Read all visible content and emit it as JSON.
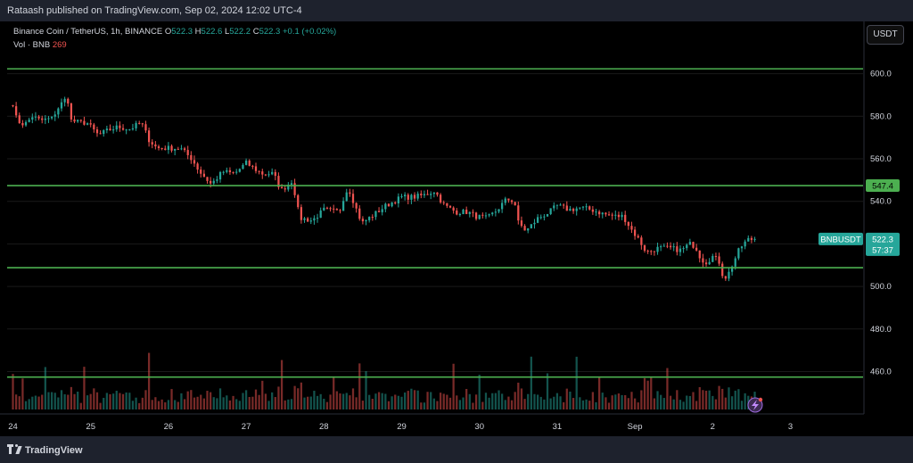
{
  "header": {
    "publisher_line": "Rataash published on TradingView.com, Sep 02, 2024 12:02 UTC-4"
  },
  "legend": {
    "title": "Binance Coin / TetherUS, 1h, BINANCE",
    "o_label": "O",
    "o_value": "522.3",
    "h_label": "H",
    "h_value": "522.6",
    "l_label": "L",
    "l_value": "522.2",
    "c_label": "C",
    "c_value": "522.3",
    "change": "+0.1 (+0.02%)",
    "vol_label": "Vol · BNB",
    "vol_value": "269"
  },
  "currency_button": "USDT",
  "footer": {
    "logo_text": "TradingView"
  },
  "colors": {
    "up": "#26a69a",
    "down": "#ef5350",
    "level_line": "#4caf50",
    "grid": "#1a1a1a"
  },
  "chart_data": {
    "type": "candlestick",
    "symbol": "BNBUSDT",
    "timeframe": "1h",
    "ylim": [
      443,
      612
    ],
    "y_ticks": [
      460,
      480,
      500,
      520,
      540,
      560,
      580,
      600
    ],
    "y_tick_labels": [
      "460.0",
      "480.0",
      "500.0",
      "520.0",
      "540.0",
      "560.0",
      "580.0",
      "600.0"
    ],
    "x_ticks": [
      {
        "label": "24",
        "day": 0
      },
      {
        "label": "25",
        "day": 1
      },
      {
        "label": "26",
        "day": 2
      },
      {
        "label": "27",
        "day": 3
      },
      {
        "label": "28",
        "day": 4
      },
      {
        "label": "29",
        "day": 5
      },
      {
        "label": "30",
        "day": 6
      },
      {
        "label": "31",
        "day": 7
      },
      {
        "label": "Sep",
        "day": 8
      },
      {
        "label": "2",
        "day": 9
      },
      {
        "label": "3",
        "day": 10
      }
    ],
    "horizontal_levels": [
      602.3,
      547.4,
      508.8,
      457.4
    ],
    "level_tag": {
      "label": "547.4",
      "price": 547.4
    },
    "last_price_tag": {
      "symbol": "BNBUSDT",
      "price": "522.3",
      "countdown": "57:37",
      "value": 522.3
    },
    "close_path": [
      [
        0.0,
        586
      ],
      [
        0.05,
        578
      ],
      [
        0.15,
        576
      ],
      [
        0.25,
        580
      ],
      [
        0.35,
        578
      ],
      [
        0.5,
        579
      ],
      [
        0.6,
        585
      ],
      [
        0.7,
        589
      ],
      [
        0.75,
        578
      ],
      [
        0.85,
        577
      ],
      [
        0.95,
        577
      ],
      [
        1.1,
        571
      ],
      [
        1.2,
        573
      ],
      [
        1.35,
        575
      ],
      [
        1.5,
        574
      ],
      [
        1.65,
        577
      ],
      [
        1.75,
        569
      ],
      [
        1.85,
        565
      ],
      [
        2.0,
        565
      ],
      [
        2.15,
        565
      ],
      [
        2.3,
        560
      ],
      [
        2.4,
        554
      ],
      [
        2.55,
        548
      ],
      [
        2.7,
        554
      ],
      [
        2.85,
        553
      ],
      [
        3.0,
        558
      ],
      [
        3.2,
        553
      ],
      [
        3.35,
        553
      ],
      [
        3.45,
        545
      ],
      [
        3.6,
        550
      ],
      [
        3.65,
        538
      ],
      [
        3.7,
        532
      ],
      [
        3.85,
        531
      ],
      [
        4.0,
        536
      ],
      [
        4.2,
        535
      ],
      [
        4.27,
        544
      ],
      [
        4.32,
        546
      ],
      [
        4.45,
        533
      ],
      [
        4.5,
        530
      ],
      [
        4.65,
        534
      ],
      [
        4.8,
        538
      ],
      [
        5.0,
        542
      ],
      [
        5.15,
        542
      ],
      [
        5.3,
        543
      ],
      [
        5.42,
        545
      ],
      [
        5.55,
        538
      ],
      [
        5.7,
        535
      ],
      [
        5.85,
        535
      ],
      [
        5.95,
        533
      ],
      [
        6.1,
        532
      ],
      [
        6.2,
        535
      ],
      [
        6.35,
        541
      ],
      [
        6.45,
        540
      ],
      [
        6.5,
        530
      ],
      [
        6.6,
        526
      ],
      [
        6.75,
        532
      ],
      [
        6.9,
        535
      ],
      [
        7.0,
        538
      ],
      [
        7.15,
        536
      ],
      [
        7.3,
        537
      ],
      [
        7.45,
        536
      ],
      [
        7.6,
        534
      ],
      [
        7.75,
        533
      ],
      [
        7.85,
        533
      ],
      [
        7.95,
        527
      ],
      [
        8.05,
        522
      ],
      [
        8.15,
        516
      ],
      [
        8.3,
        518
      ],
      [
        8.45,
        518
      ],
      [
        8.6,
        517
      ],
      [
        8.7,
        520
      ],
      [
        8.78,
        519
      ],
      [
        8.82,
        515
      ],
      [
        8.9,
        511
      ],
      [
        9.0,
        514
      ],
      [
        9.08,
        512
      ],
      [
        9.12,
        506
      ],
      [
        9.18,
        504
      ],
      [
        9.25,
        510
      ],
      [
        9.35,
        518
      ],
      [
        9.45,
        522
      ],
      [
        9.55,
        522.3
      ]
    ],
    "volume_axis": {
      "max": 140
    }
  }
}
